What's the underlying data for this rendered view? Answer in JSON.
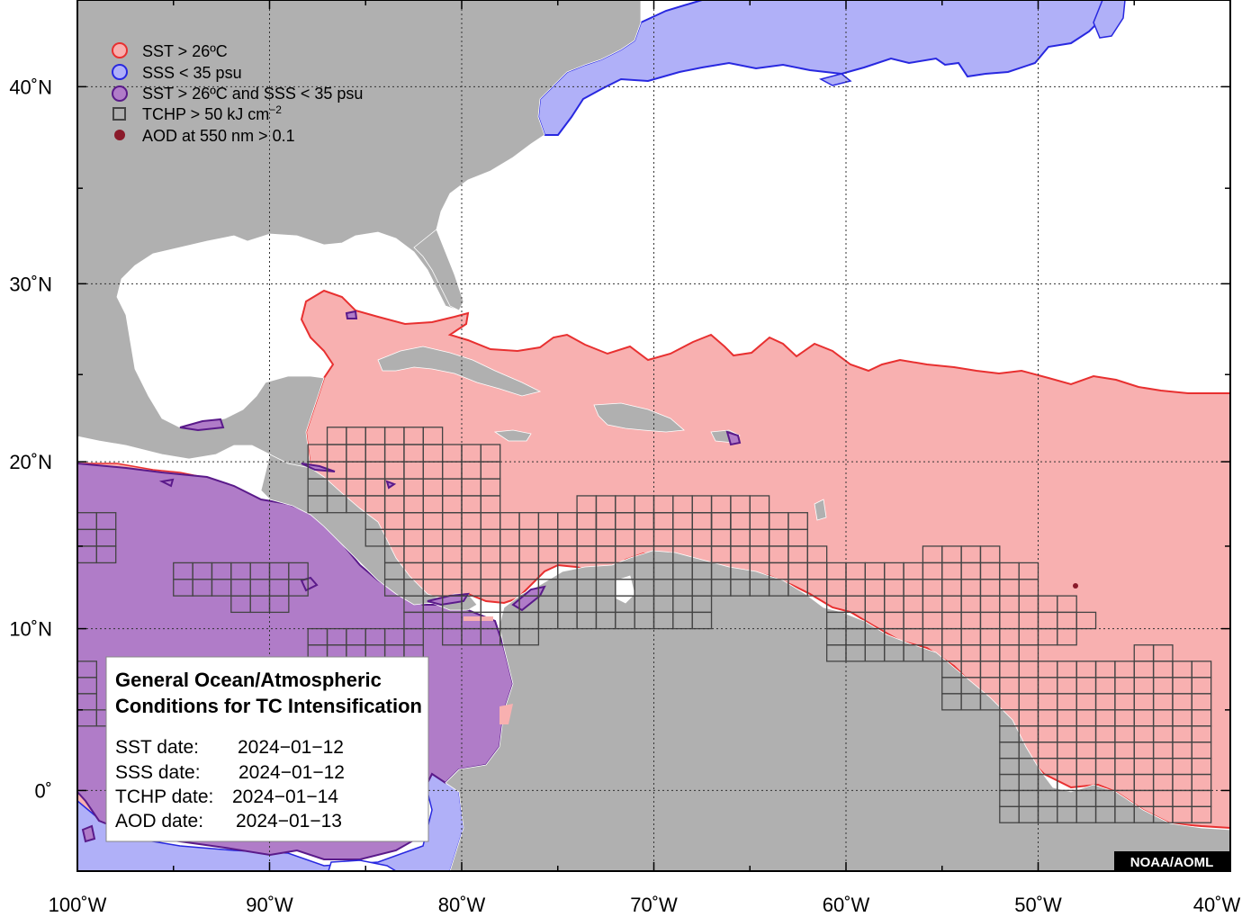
{
  "map": {
    "region": {
      "lon_min": -100,
      "lon_max": -40,
      "lat_min": -5,
      "lat_max": 44
    },
    "lon_ticks": [
      {
        "lon": -100,
        "label": "100˚W"
      },
      {
        "lon": -90,
        "label": "90˚W"
      },
      {
        "lon": -80,
        "label": "80˚W"
      },
      {
        "lon": -70,
        "label": "70˚W"
      },
      {
        "lon": -60,
        "label": "60˚W"
      },
      {
        "lon": -50,
        "label": "50˚W"
      },
      {
        "lon": -40,
        "label": "40˚W"
      }
    ],
    "lat_ticks": [
      {
        "lat": 0,
        "label": "0˚"
      },
      {
        "lat": 10,
        "label": "10˚N"
      },
      {
        "lat": 20,
        "label": "20˚N"
      },
      {
        "lat": 30,
        "label": "30˚N"
      },
      {
        "lat": 40,
        "label": "40˚N"
      }
    ],
    "colors": {
      "land": "#b0b0b0",
      "ocean": "#ffffff",
      "sst": "#f8b0b0",
      "sst_edge": "#e83030",
      "sss": "#b0b0f8",
      "sss_edge": "#2828e0",
      "both": "#b07cc8",
      "both_edge": "#5a1a8a",
      "tchp": "#444444",
      "aod": "#8a1a2a"
    }
  },
  "legend": {
    "items": [
      {
        "key": "sst",
        "label": "SST > 26ºC"
      },
      {
        "key": "sss",
        "label": "SSS < 35 psu"
      },
      {
        "key": "both",
        "label": "SST > 26ºC and SSS < 35 psu"
      },
      {
        "key": "tchp",
        "label": "TCHP > 50 kJ cm",
        "sup": "−2"
      },
      {
        "key": "aod",
        "label": "AOD at 550 nm > 0.1"
      }
    ]
  },
  "info": {
    "title_line1": "General Ocean/Atmospheric",
    "title_line2": "Conditions for TC Intensification",
    "dates": [
      {
        "label": "SST date:",
        "value": "2024−01−12"
      },
      {
        "label": "SSS date:",
        "value": "2024−01−12"
      },
      {
        "label": "TCHP date:",
        "value": "2024−01−14"
      },
      {
        "label": "AOD date:",
        "value": "2024−01−13"
      }
    ]
  },
  "credit": "NOAA/AOML"
}
